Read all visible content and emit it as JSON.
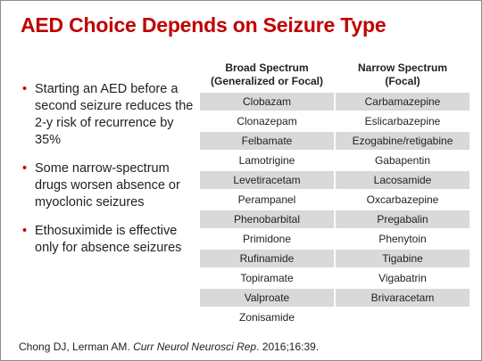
{
  "title": "AED Choice Depends on Seizure Type",
  "bullets": [
    "Starting an AED before a second seizure reduces the 2-y risk of recurrence by 35%",
    "Some narrow-spectrum drugs worsen absence or myoclonic seizures",
    "Ethosuximide is effective only for absence seizures"
  ],
  "table": {
    "headers": [
      [
        "Broad Spectrum",
        "(Generalized or Focal)"
      ],
      [
        "Narrow Spectrum",
        "(Focal)"
      ]
    ],
    "rows": [
      [
        "Clobazam",
        "Carbamazepine"
      ],
      [
        "Clonazepam",
        "Eslicarbazepine"
      ],
      [
        "Felbamate",
        "Ezogabine/retigabine"
      ],
      [
        "Lamotrigine",
        "Gabapentin"
      ],
      [
        "Levetiracetam",
        "Lacosamide"
      ],
      [
        "Perampanel",
        "Oxcarbazepine"
      ],
      [
        "Phenobarbital",
        "Pregabalin"
      ],
      [
        "Primidone",
        "Phenytoin"
      ],
      [
        "Rufinamide",
        "Tigabine"
      ],
      [
        "Topiramate",
        "Vigabatrin"
      ],
      [
        "Valproate",
        "Brivaracetam"
      ],
      [
        "Zonisamide"
      ]
    ]
  },
  "citation": {
    "authors": "Chong DJ, Lerman AM. ",
    "journal": "Curr Neurol Neurosci Rep",
    "rest": ". 2016;16:39."
  }
}
